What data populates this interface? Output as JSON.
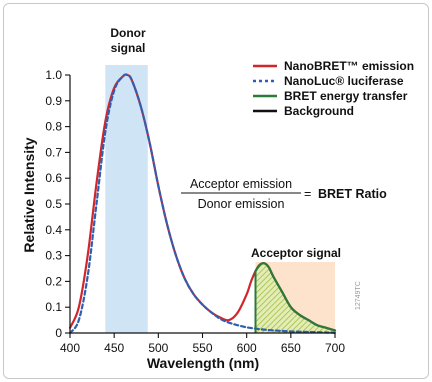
{
  "colors": {
    "donor_band": "#cfe4f5",
    "acceptor_band": "#fde3cc",
    "nanobret": "#d1262b",
    "nanoluc": "#2f5fb3",
    "bret": "#2a7a3b",
    "background": "#111111",
    "hatch": "#b9cf58"
  },
  "chart_data": {
    "type": "line",
    "xlabel": "Wavelength (nm)",
    "ylabel": "Relative Intensity",
    "xlim": [
      400,
      700
    ],
    "ylim": [
      0,
      1.0
    ],
    "x_ticks": [
      "400",
      "450",
      "500",
      "550",
      "600",
      "650",
      "700"
    ],
    "y_ticks": [
      "0",
      "0.1",
      "0.2",
      "0.3",
      "0.4",
      "0.5",
      "0.6",
      "0.7",
      "0.8",
      "0.9",
      "1.0"
    ],
    "grid": false,
    "legend_position": "top-right",
    "bands": [
      {
        "label_line1": "Donor",
        "label_line2": "signal",
        "x_range": [
          440,
          488
        ]
      },
      {
        "label_line1": "Acceptor signal",
        "label_line2": "",
        "x_range": [
          610,
          700
        ]
      }
    ],
    "series": [
      {
        "name": "NanoBRET™ emission",
        "style": "solid",
        "color": "nanobret",
        "x": [
          400,
          410,
          420,
          430,
          440,
          450,
          460,
          465,
          470,
          480,
          490,
          500,
          510,
          520,
          530,
          540,
          550,
          560,
          570,
          580,
          590,
          600,
          605,
          610,
          615,
          620,
          625,
          630,
          640,
          650,
          660,
          670,
          680,
          690,
          700
        ],
        "y": [
          0.02,
          0.1,
          0.3,
          0.58,
          0.82,
          0.95,
          0.995,
          1.0,
          0.98,
          0.88,
          0.74,
          0.57,
          0.42,
          0.3,
          0.21,
          0.15,
          0.11,
          0.08,
          0.06,
          0.05,
          0.08,
          0.15,
          0.2,
          0.24,
          0.265,
          0.27,
          0.255,
          0.22,
          0.16,
          0.1,
          0.07,
          0.05,
          0.03,
          0.02,
          0.01
        ]
      },
      {
        "name": "NanoLuc® luciferase",
        "style": "dashed",
        "color": "nanoluc",
        "x": [
          400,
          410,
          420,
          430,
          440,
          450,
          460,
          465,
          470,
          480,
          490,
          500,
          510,
          520,
          530,
          540,
          550,
          560,
          570,
          580,
          590,
          600,
          610,
          620,
          630,
          640,
          650,
          660,
          670,
          680,
          690,
          700
        ],
        "y": [
          0.0,
          0.05,
          0.22,
          0.5,
          0.78,
          0.94,
          0.995,
          1.0,
          0.98,
          0.88,
          0.74,
          0.57,
          0.42,
          0.3,
          0.21,
          0.15,
          0.11,
          0.08,
          0.055,
          0.04,
          0.03,
          0.022,
          0.017,
          0.013,
          0.01,
          0.008,
          0.006,
          0.005,
          0.004,
          0.003,
          0.002,
          0.001
        ]
      },
      {
        "name": "BRET energy transfer",
        "style": "solid",
        "color": "bret",
        "x": [
          610,
          615,
          620,
          625,
          630,
          640,
          650,
          660,
          670,
          680,
          690,
          700
        ],
        "y": [
          0.24,
          0.265,
          0.27,
          0.255,
          0.22,
          0.16,
          0.1,
          0.07,
          0.05,
          0.03,
          0.02,
          0.01
        ]
      },
      {
        "name": "Background",
        "style": "solid",
        "color": "background",
        "x": [],
        "y": []
      }
    ],
    "annotations": {
      "numerator": "Acceptor emission",
      "denominator": "Donor emission",
      "equals": "= ",
      "result": "BRET Ratio",
      "watermark": "12749TC"
    }
  }
}
